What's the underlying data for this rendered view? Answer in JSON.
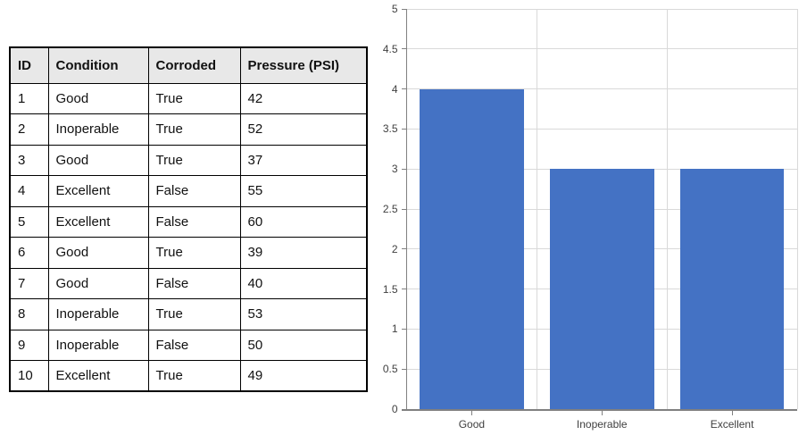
{
  "table": {
    "headers": [
      "ID",
      "Condition",
      "Corroded",
      "Pressure (PSI)"
    ],
    "rows": [
      [
        "1",
        "Good",
        "True",
        "42"
      ],
      [
        "2",
        "Inoperable",
        "True",
        "52"
      ],
      [
        "3",
        "Good",
        "True",
        "37"
      ],
      [
        "4",
        "Excellent",
        "False",
        "55"
      ],
      [
        "5",
        "Excellent",
        "False",
        "60"
      ],
      [
        "6",
        "Good",
        "True",
        "39"
      ],
      [
        "7",
        "Good",
        "False",
        "40"
      ],
      [
        "8",
        "Inoperable",
        "True",
        "53"
      ],
      [
        "9",
        "Inoperable",
        "False",
        "50"
      ],
      [
        "10",
        "Excellent",
        "True",
        "49"
      ]
    ]
  },
  "chart_data": {
    "type": "bar",
    "title": "",
    "xlabel": "",
    "ylabel": "",
    "categories": [
      "Good",
      "Inoperable",
      "Excellent"
    ],
    "values": [
      4,
      3,
      3
    ],
    "ylim": [
      0,
      5
    ],
    "ytick_step": 0.5,
    "grid": true,
    "legend": false,
    "bar_color": "#4472C4",
    "gridline_color": "#D9D9D9",
    "axis_color": "#808080",
    "label_color": "#404040"
  }
}
